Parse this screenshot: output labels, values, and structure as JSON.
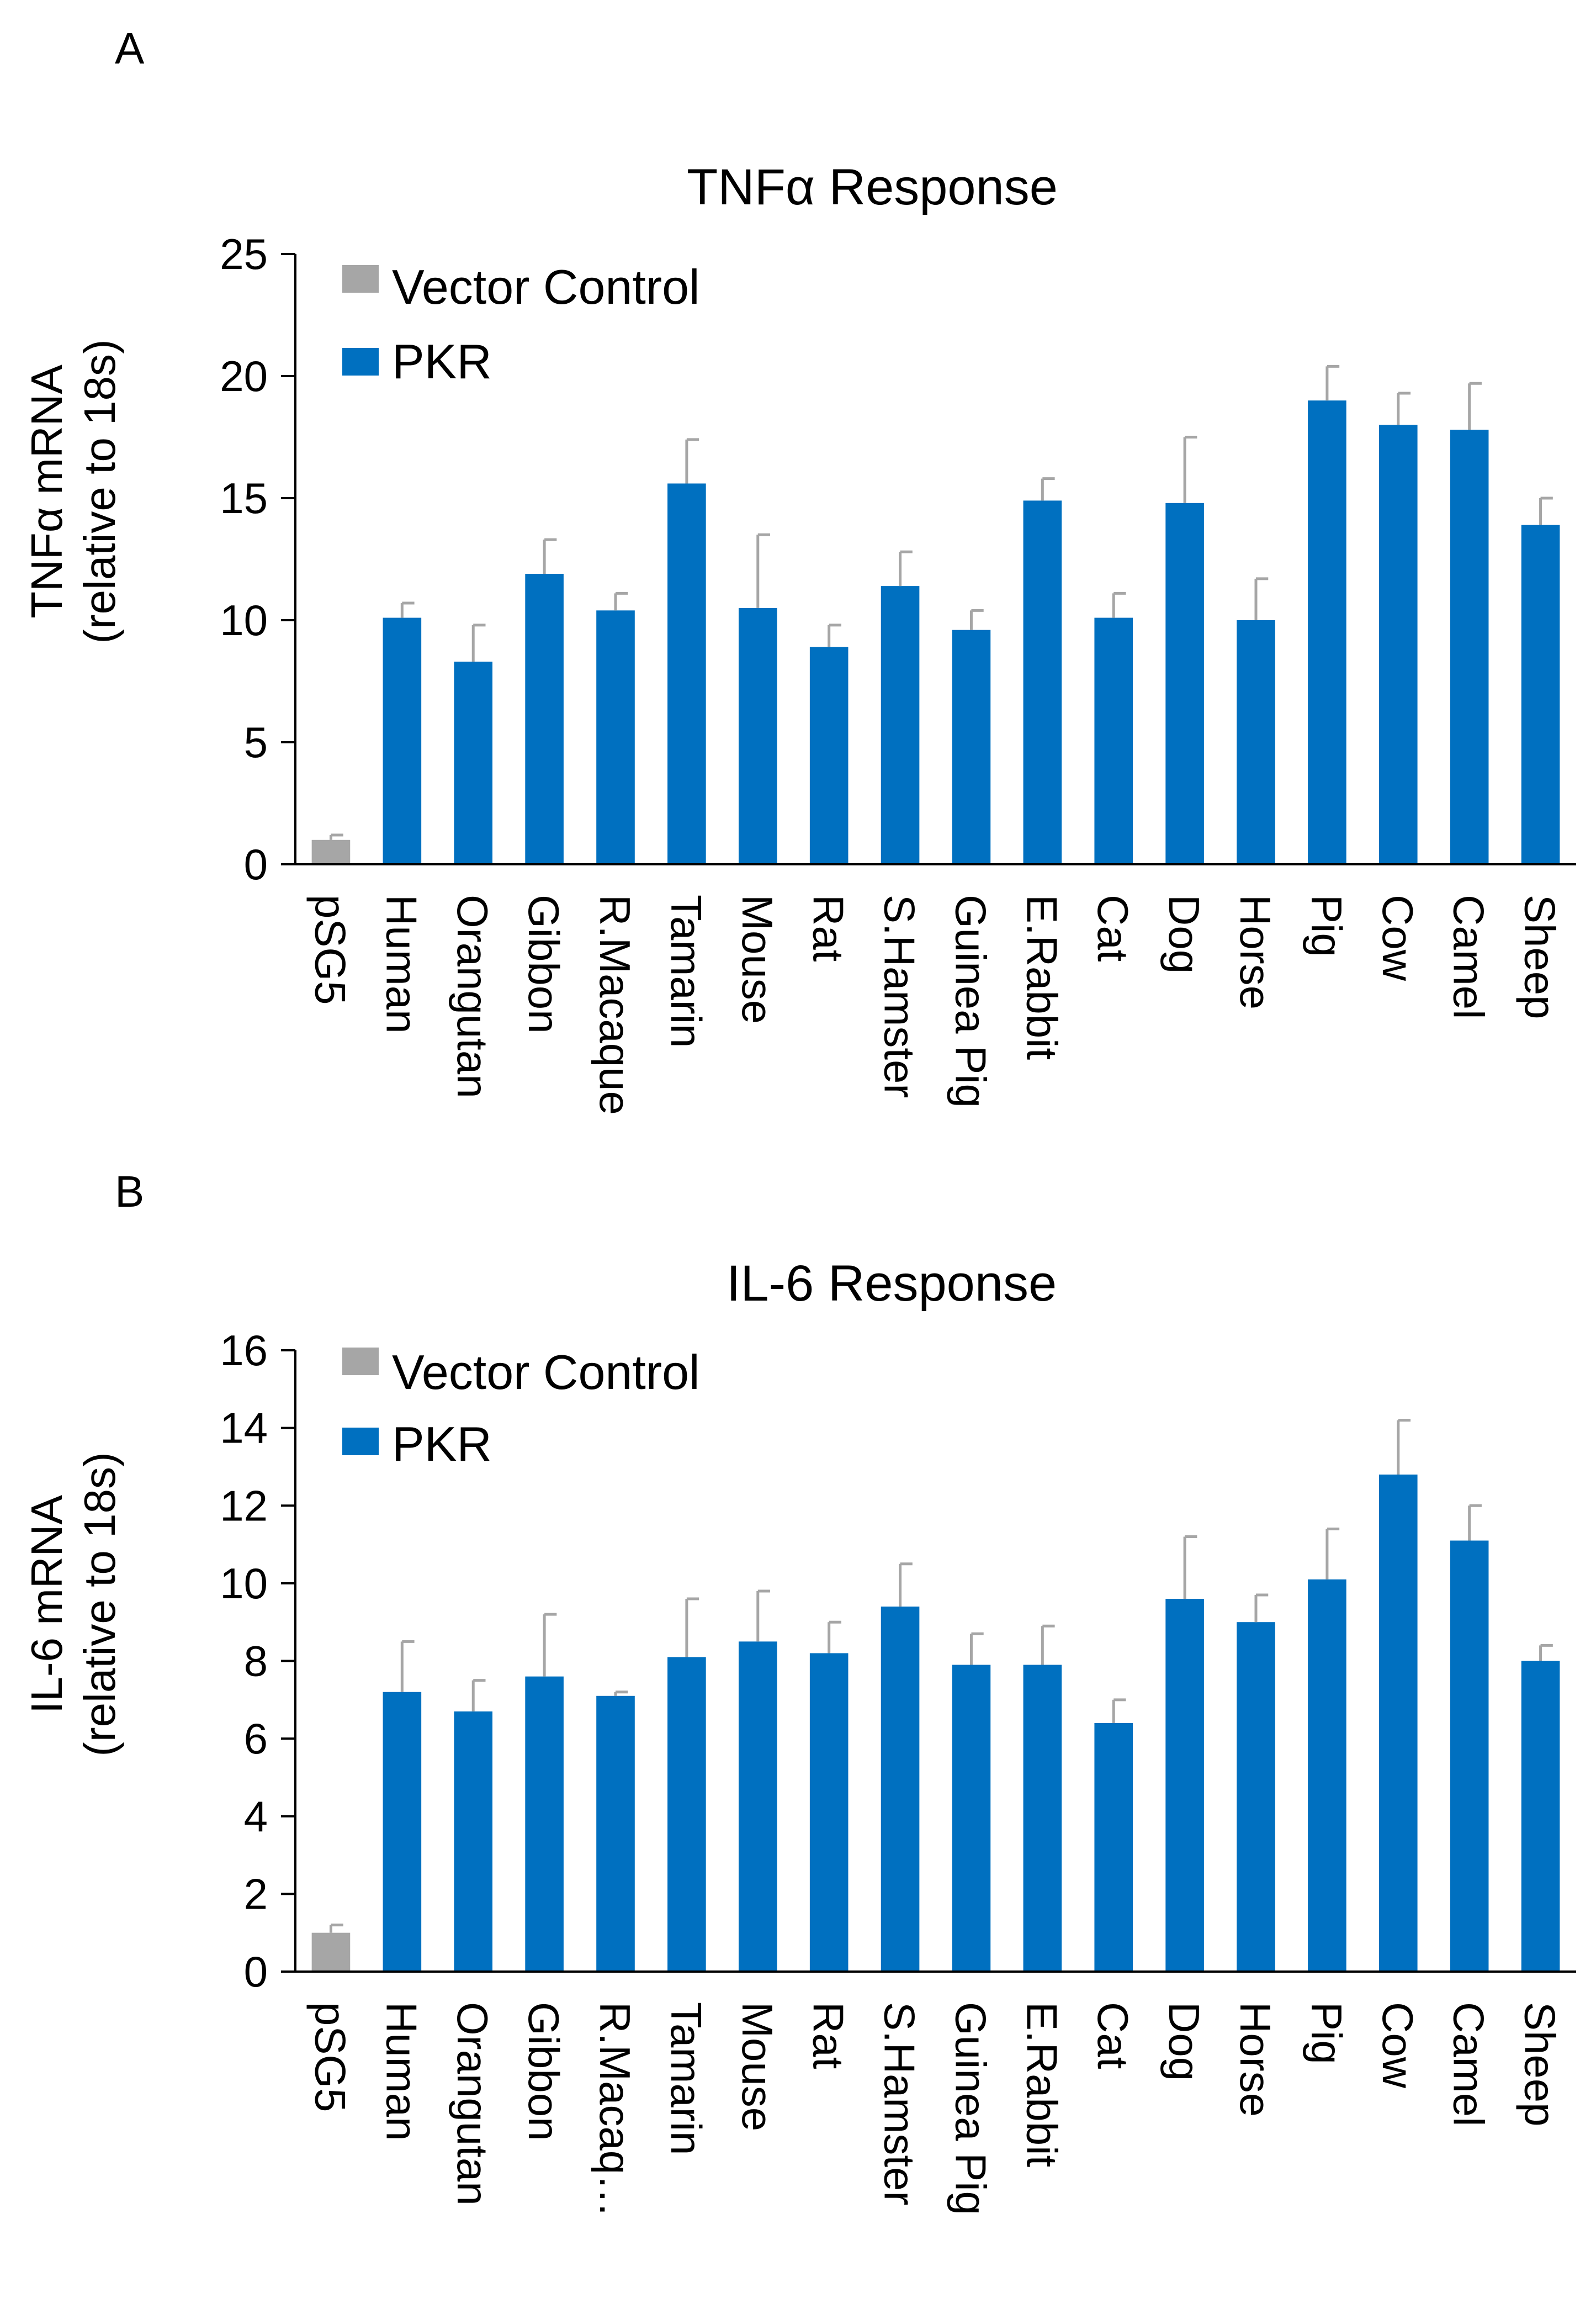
{
  "chart_data": [
    {
      "panel": "A",
      "type": "bar",
      "title": "TNFα  Response",
      "ylabel_line1": "TNFα mRNA",
      "ylabel_line2": "(relative to 18s)",
      "xlabel": "",
      "ylim": [
        0,
        25
      ],
      "yticks": [
        0,
        5,
        10,
        15,
        20,
        25
      ],
      "legend": [
        {
          "name": "Vector Control",
          "color": "#a6a6a6"
        },
        {
          "name": "PKR",
          "color": "#0070c0"
        }
      ],
      "legend_position": "top-left",
      "categories": [
        "pSG5",
        "Human",
        "Orangutan",
        "Gibbon",
        "R.Macaque",
        "Tamarin",
        "Mouse",
        "Rat",
        "S.Hamster",
        "Guinea Pig",
        "E.Rabbit",
        "Cat",
        "Dog",
        "Horse",
        "Pig",
        "Cow",
        "Camel",
        "Sheep"
      ],
      "series_index": [
        0,
        1,
        1,
        1,
        1,
        1,
        1,
        1,
        1,
        1,
        1,
        1,
        1,
        1,
        1,
        1,
        1,
        1
      ],
      "values": [
        1.0,
        10.1,
        8.3,
        11.9,
        10.4,
        15.6,
        10.5,
        8.9,
        11.4,
        9.6,
        14.9,
        10.1,
        14.8,
        10.0,
        19.0,
        18.0,
        17.8,
        13.9
      ],
      "errors": [
        0.2,
        0.6,
        1.5,
        1.4,
        0.7,
        1.8,
        3.0,
        0.9,
        1.4,
        0.8,
        0.9,
        1.0,
        2.7,
        1.7,
        1.4,
        1.3,
        1.9,
        1.1
      ]
    },
    {
      "panel": "B",
      "type": "bar",
      "title": "IL-6 Response",
      "ylabel_line1": "IL-6 mRNA",
      "ylabel_line2": "(relative to 18s)",
      "xlabel": "",
      "ylim": [
        0,
        16
      ],
      "yticks": [
        0,
        2,
        4,
        6,
        8,
        10,
        12,
        14,
        16
      ],
      "legend": [
        {
          "name": "Vector Control",
          "color": "#a6a6a6"
        },
        {
          "name": "PKR",
          "color": "#0070c0"
        }
      ],
      "legend_position": "top-left",
      "categories": [
        "pSG5",
        "Human",
        "Orangutan",
        "Gibbon",
        "R.Macaq…",
        "Tamarin",
        "Mouse",
        "Rat",
        "S.Hamster",
        "Guinea Pig",
        "E.Rabbit",
        "Cat",
        "Dog",
        "Horse",
        "Pig",
        "Cow",
        "Camel",
        "Sheep"
      ],
      "series_index": [
        0,
        1,
        1,
        1,
        1,
        1,
        1,
        1,
        1,
        1,
        1,
        1,
        1,
        1,
        1,
        1,
        1,
        1
      ],
      "values": [
        1.0,
        7.2,
        6.7,
        7.6,
        7.1,
        8.1,
        8.5,
        8.2,
        9.4,
        7.9,
        7.9,
        6.4,
        9.6,
        9.0,
        10.1,
        12.8,
        11.1,
        8.0
      ],
      "errors": [
        0.2,
        1.3,
        0.8,
        1.6,
        0.1,
        1.5,
        1.3,
        0.8,
        1.1,
        0.8,
        1.0,
        0.6,
        1.6,
        0.7,
        1.3,
        1.4,
        0.9,
        0.4
      ]
    }
  ]
}
